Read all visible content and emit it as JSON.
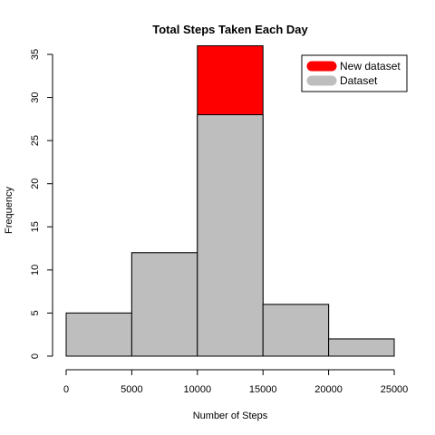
{
  "chart_data": {
    "type": "bar",
    "title": "Total Steps Taken Each Day",
    "xlabel": "Number of Steps",
    "ylabel": "Frequency",
    "xlim": [
      0,
      25000
    ],
    "ylim": [
      0,
      35
    ],
    "x_ticks": [
      "0",
      "5000",
      "10000",
      "15000",
      "20000",
      "25000"
    ],
    "y_ticks": [
      "0",
      "5",
      "10",
      "15",
      "20",
      "25",
      "30",
      "35"
    ],
    "bins": [
      [
        0,
        5000
      ],
      [
        5000,
        10000
      ],
      [
        10000,
        15000
      ],
      [
        15000,
        20000
      ],
      [
        20000,
        25000
      ]
    ],
    "series": [
      {
        "name": "New dataset",
        "color": "#ff0000",
        "values": [
          5,
          12,
          36,
          6,
          2
        ]
      },
      {
        "name": "Dataset",
        "color": "#bebebe",
        "values": [
          5,
          12,
          28,
          6,
          2
        ]
      }
    ],
    "legend_position": "top-right",
    "grid": false
  }
}
